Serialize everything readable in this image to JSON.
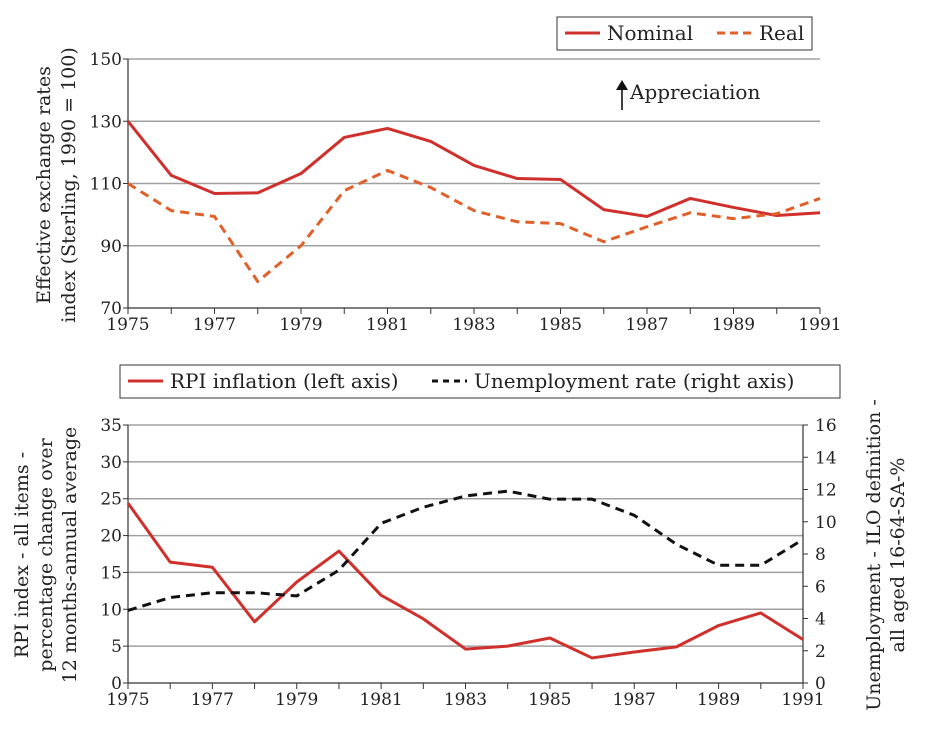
{
  "chart_data": [
    {
      "type": "line",
      "x": [
        1975,
        1976,
        1977,
        1978,
        1979,
        1980,
        1981,
        1982,
        1983,
        1984,
        1985,
        1986,
        1987,
        1988,
        1989,
        1990,
        1991
      ],
      "x_ticks": [
        1975,
        1977,
        1979,
        1981,
        1983,
        1985,
        1987,
        1989,
        1991
      ],
      "ylabel": [
        "Effective exchange rates",
        "index (Sterling, 1990 = 100)"
      ],
      "ylim": [
        70,
        150
      ],
      "y_ticks": [
        70,
        90,
        110,
        130,
        150
      ],
      "grid": true,
      "legend": "top-right",
      "annotation": "Appreciation",
      "series": [
        {
          "name": "Nominal",
          "style": "solid",
          "color": "#d0302c",
          "values": [
            130,
            112.6,
            106.8,
            107,
            113.2,
            124.8,
            127.7,
            123.5,
            115.8,
            111.6,
            111.3,
            101.6,
            99.4,
            105.2,
            102.3,
            99.7,
            100.6
          ]
        },
        {
          "name": "Real",
          "style": "dashed",
          "color": "#e0602a",
          "values": [
            110,
            101.3,
            99.4,
            78.5,
            90,
            107.7,
            114.2,
            108.7,
            101.3,
            97.7,
            97.1,
            91.3,
            96.1,
            100.6,
            98.7,
            100.3,
            105.2
          ]
        }
      ]
    },
    {
      "type": "line",
      "x": [
        1975,
        1976,
        1977,
        1978,
        1979,
        1980,
        1981,
        1982,
        1983,
        1984,
        1985,
        1986,
        1987,
        1988,
        1989,
        1990,
        1991
      ],
      "x_ticks": [
        1975,
        1977,
        1979,
        1981,
        1983,
        1985,
        1987,
        1989,
        1991
      ],
      "ylabel": [
        "RPI index - all items -",
        "percentage change over",
        "12 months-annual average"
      ],
      "ylabel_right": [
        "Unemployment - ILO definition -",
        "all aged 16-64-SA-%"
      ],
      "ylim": [
        0,
        35
      ],
      "y_ticks": [
        0,
        5,
        10,
        15,
        20,
        25,
        30,
        35
      ],
      "ylim_right": [
        0,
        16
      ],
      "y_ticks_right": [
        0,
        2,
        4,
        6,
        8,
        10,
        12,
        14,
        16
      ],
      "grid": true,
      "legend": "top",
      "series": [
        {
          "name": "RPI inflation (left axis)",
          "axis": "left",
          "style": "solid",
          "color": "#d0302c",
          "values": [
            24.4,
            16.4,
            15.7,
            8.3,
            13.7,
            17.9,
            11.9,
            8.7,
            4.6,
            5.0,
            6.1,
            3.4,
            4.2,
            4.9,
            7.8,
            9.5,
            5.9
          ]
        },
        {
          "name": "Unemployment rate (right axis)",
          "axis": "right",
          "style": "dashed",
          "color": "#111111",
          "values": [
            4.5,
            5.3,
            5.6,
            5.6,
            5.4,
            7.0,
            9.9,
            10.9,
            11.6,
            11.9,
            11.4,
            11.4,
            10.4,
            8.6,
            7.3,
            7.3,
            8.9
          ]
        }
      ]
    }
  ]
}
